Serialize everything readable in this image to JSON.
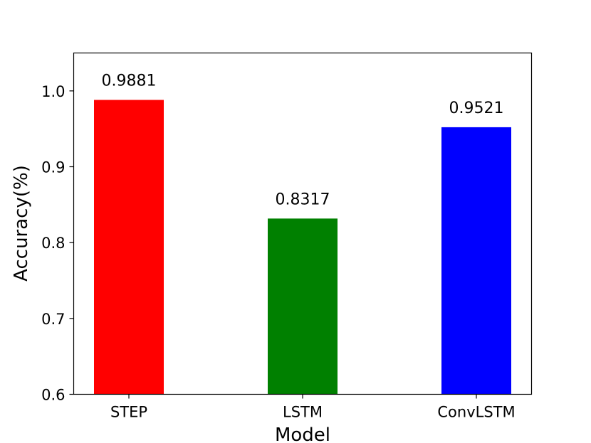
{
  "chart_data": {
    "type": "bar",
    "title": "",
    "xlabel": "Model",
    "ylabel": "Accuracy(%)",
    "categories": [
      "STEP",
      "LSTM",
      "ConvLSTM"
    ],
    "values": [
      0.9881,
      0.8317,
      0.9521
    ],
    "value_labels": [
      "0.9881",
      "0.8317",
      "0.9521"
    ],
    "colors": [
      "#ff0000",
      "#008000",
      "#0000ff"
    ],
    "ylim": [
      0.6,
      1.05
    ],
    "yticks": [
      0.6,
      0.7,
      0.8,
      0.9,
      1.0
    ],
    "ytick_labels": [
      "0.6",
      "0.7",
      "0.8",
      "0.9",
      "1.0"
    ],
    "grid": false,
    "legend": "none"
  }
}
